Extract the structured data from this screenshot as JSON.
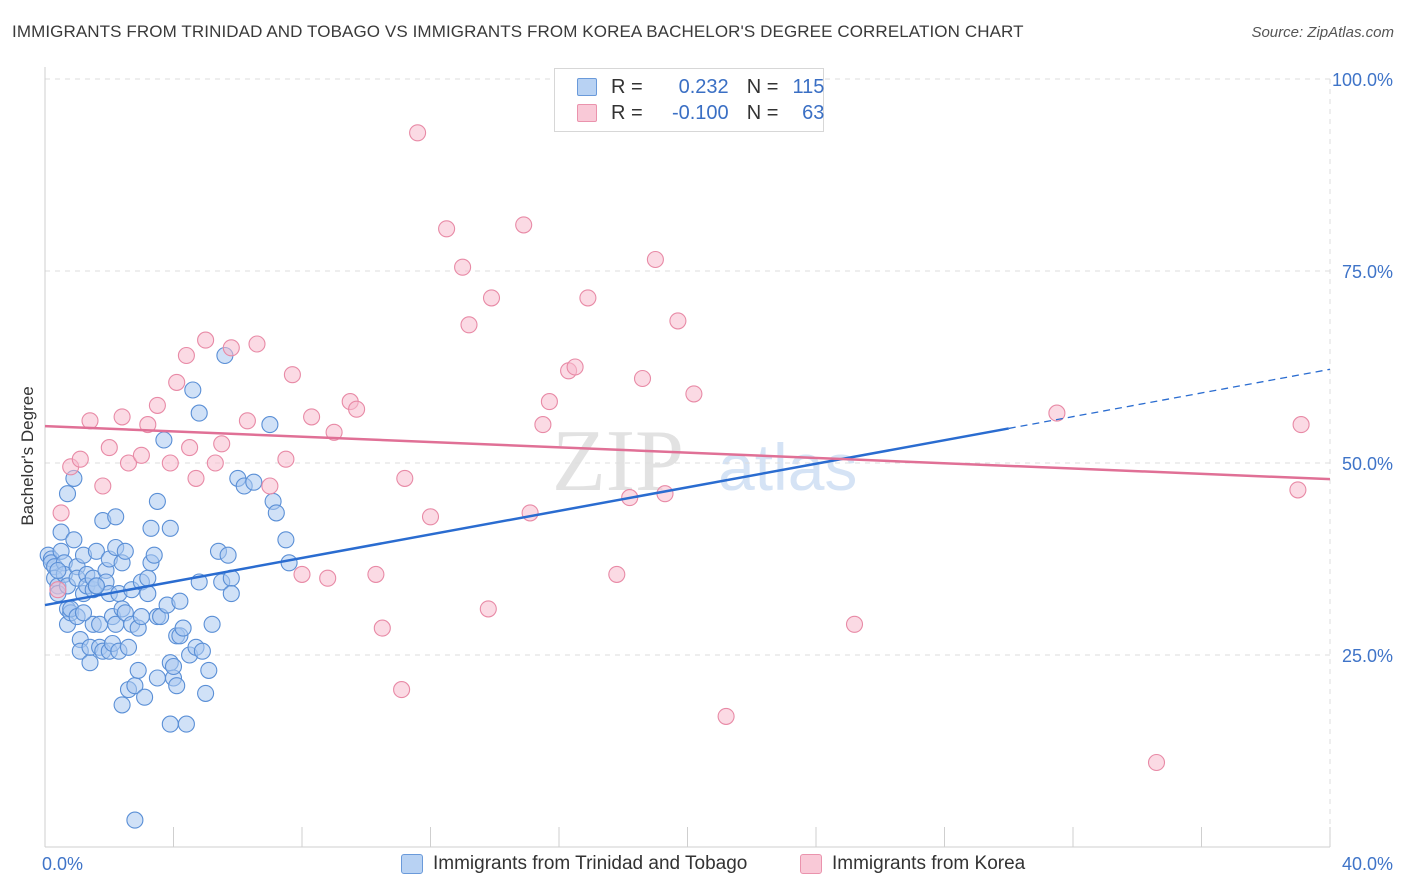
{
  "header": {
    "title": "IMMIGRANTS FROM TRINIDAD AND TOBAGO VS IMMIGRANTS FROM KOREA BACHELOR'S DEGREE CORRELATION CHART",
    "source": "Source: ZipAtlas.com"
  },
  "watermark": {
    "zip": "ZIP",
    "atlas": "atlas"
  },
  "legend_top": {
    "rows": [
      {
        "r_label": "R =",
        "r_value": "0.232",
        "n_label": "N =",
        "n_value": "115"
      },
      {
        "r_label": "R =",
        "r_value": "-0.100",
        "n_label": "N =",
        "n_value": "63"
      }
    ]
  },
  "colors": {
    "blue_fill": "#a9c8f0",
    "blue_stroke": "#5a8fd6",
    "blue_line": "#2a6cd0",
    "pink_fill": "#f7bccd",
    "pink_stroke": "#e88aa6",
    "pink_line": "#e07096",
    "axis_text": "#3f74c8",
    "grid": "#dddddd"
  },
  "chart_data": {
    "type": "scatter",
    "ylabel": "Bachelor's Degree",
    "xlabel": "",
    "xlim": [
      0,
      40
    ],
    "ylim": [
      0,
      100
    ],
    "x_tick_labels": [
      {
        "value": 0,
        "label": "0.0%"
      },
      {
        "value": 40,
        "label": "40.0%"
      }
    ],
    "y_tick_labels": [
      {
        "value": 25,
        "label": "25.0%"
      },
      {
        "value": 50,
        "label": "50.0%"
      },
      {
        "value": 75,
        "label": "75.0%"
      },
      {
        "value": 100,
        "label": "100.0%"
      }
    ],
    "grid": true,
    "legend_position": "bottom",
    "series": [
      {
        "name": "Immigrants from Trinidad and Tobago",
        "color": "#a9c8f0",
        "trend": {
          "x": [
            0,
            30
          ],
          "y": [
            31.5,
            54.5
          ],
          "dashed_extension": {
            "x": [
              30,
              40
            ],
            "y": [
              54.5,
              62.2
            ]
          }
        },
        "points": [
          [
            0.1,
            38
          ],
          [
            0.2,
            37.5
          ],
          [
            0.2,
            37
          ],
          [
            0.3,
            36.5
          ],
          [
            0.3,
            35
          ],
          [
            0.4,
            34
          ],
          [
            0.4,
            33
          ],
          [
            0.5,
            38.5
          ],
          [
            0.5,
            41
          ],
          [
            0.6,
            37
          ],
          [
            0.6,
            35.5
          ],
          [
            0.7,
            34
          ],
          [
            0.7,
            31
          ],
          [
            0.7,
            29
          ],
          [
            0.8,
            30.5
          ],
          [
            0.8,
            31
          ],
          [
            0.9,
            48
          ],
          [
            0.9,
            40
          ],
          [
            1.0,
            36.5
          ],
          [
            1.0,
            35
          ],
          [
            1.0,
            30
          ],
          [
            1.1,
            27
          ],
          [
            1.1,
            25.5
          ],
          [
            1.2,
            38
          ],
          [
            1.2,
            33
          ],
          [
            1.3,
            35.5
          ],
          [
            1.3,
            34
          ],
          [
            1.4,
            24
          ],
          [
            1.4,
            26
          ],
          [
            1.5,
            29
          ],
          [
            1.5,
            33.5
          ],
          [
            1.5,
            35
          ],
          [
            1.6,
            38.5
          ],
          [
            1.6,
            34
          ],
          [
            1.7,
            26
          ],
          [
            1.7,
            29
          ],
          [
            1.8,
            25.5
          ],
          [
            1.8,
            42.5
          ],
          [
            1.9,
            36
          ],
          [
            1.9,
            34.5
          ],
          [
            2.0,
            33
          ],
          [
            2.0,
            37.5
          ],
          [
            2.0,
            25.5
          ],
          [
            2.1,
            30
          ],
          [
            2.1,
            26.5
          ],
          [
            2.2,
            29
          ],
          [
            2.2,
            43
          ],
          [
            2.2,
            39
          ],
          [
            2.3,
            33
          ],
          [
            2.3,
            25.5
          ],
          [
            2.4,
            31
          ],
          [
            2.4,
            37
          ],
          [
            2.4,
            18.5
          ],
          [
            2.5,
            38.5
          ],
          [
            2.5,
            30.5
          ],
          [
            2.6,
            20.5
          ],
          [
            2.6,
            26
          ],
          [
            2.7,
            33.5
          ],
          [
            2.7,
            29
          ],
          [
            2.8,
            21
          ],
          [
            2.9,
            23
          ],
          [
            2.9,
            28.5
          ],
          [
            3.0,
            30
          ],
          [
            3.0,
            34.5
          ],
          [
            3.1,
            19.5
          ],
          [
            3.2,
            35
          ],
          [
            3.2,
            33
          ],
          [
            3.3,
            41.5
          ],
          [
            3.3,
            37
          ],
          [
            3.4,
            38
          ],
          [
            3.5,
            22
          ],
          [
            3.5,
            30
          ],
          [
            3.5,
            45
          ],
          [
            3.6,
            30
          ],
          [
            3.7,
            53
          ],
          [
            3.8,
            31.5
          ],
          [
            3.9,
            41.5
          ],
          [
            3.9,
            24
          ],
          [
            3.9,
            16
          ],
          [
            4.0,
            22
          ],
          [
            4.0,
            23.5
          ],
          [
            4.1,
            21
          ],
          [
            4.1,
            27.5
          ],
          [
            4.2,
            27.5
          ],
          [
            4.2,
            32
          ],
          [
            4.3,
            28.5
          ],
          [
            4.4,
            16
          ],
          [
            4.5,
            25
          ],
          [
            4.6,
            59.5
          ],
          [
            4.7,
            26
          ],
          [
            4.8,
            56.5
          ],
          [
            4.8,
            34.5
          ],
          [
            4.9,
            25.5
          ],
          [
            5.0,
            20
          ],
          [
            5.1,
            23
          ],
          [
            5.2,
            29
          ],
          [
            5.4,
            38.5
          ],
          [
            5.5,
            34.5
          ],
          [
            5.6,
            64
          ],
          [
            5.7,
            38
          ],
          [
            5.8,
            35
          ],
          [
            5.8,
            33
          ],
          [
            6.0,
            48
          ],
          [
            6.2,
            47
          ],
          [
            6.5,
            47.5
          ],
          [
            7.0,
            55
          ],
          [
            7.1,
            45
          ],
          [
            7.2,
            43.5
          ],
          [
            7.5,
            40
          ],
          [
            7.6,
            37
          ],
          [
            0.4,
            36
          ],
          [
            1.2,
            30.5
          ],
          [
            0.7,
            46
          ],
          [
            1.6,
            34
          ],
          [
            2.8,
            3.5
          ]
        ]
      },
      {
        "name": "Immigrants from Korea",
        "color": "#f7bccd",
        "trend": {
          "x": [
            0,
            40
          ],
          "y": [
            54.8,
            47.9
          ]
        },
        "points": [
          [
            0.4,
            33.5
          ],
          [
            0.5,
            43.5
          ],
          [
            0.8,
            49.5
          ],
          [
            1.1,
            50.5
          ],
          [
            1.4,
            55.5
          ],
          [
            1.8,
            47
          ],
          [
            2.0,
            52
          ],
          [
            2.4,
            56
          ],
          [
            2.6,
            50
          ],
          [
            3.0,
            51
          ],
          [
            3.2,
            55
          ],
          [
            3.5,
            57.5
          ],
          [
            3.9,
            50
          ],
          [
            4.1,
            60.5
          ],
          [
            4.4,
            64
          ],
          [
            4.5,
            52
          ],
          [
            4.7,
            48
          ],
          [
            5.0,
            66
          ],
          [
            5.3,
            50
          ],
          [
            5.5,
            52.5
          ],
          [
            5.8,
            65
          ],
          [
            6.3,
            55.5
          ],
          [
            6.6,
            65.5
          ],
          [
            7.0,
            47
          ],
          [
            7.5,
            50.5
          ],
          [
            7.7,
            61.5
          ],
          [
            8.0,
            35.5
          ],
          [
            8.3,
            56
          ],
          [
            8.8,
            35
          ],
          [
            9.0,
            54
          ],
          [
            9.5,
            58
          ],
          [
            9.7,
            57
          ],
          [
            10.3,
            35.5
          ],
          [
            10.5,
            28.5
          ],
          [
            11.1,
            20.5
          ],
          [
            11.2,
            48
          ],
          [
            11.6,
            93
          ],
          [
            12.0,
            43
          ],
          [
            12.5,
            80.5
          ],
          [
            13.0,
            75.5
          ],
          [
            13.2,
            68
          ],
          [
            13.8,
            31
          ],
          [
            13.9,
            71.5
          ],
          [
            14.9,
            81
          ],
          [
            15.1,
            43.5
          ],
          [
            15.5,
            55
          ],
          [
            15.7,
            58
          ],
          [
            16.3,
            62
          ],
          [
            16.5,
            62.5
          ],
          [
            16.9,
            71.5
          ],
          [
            17.8,
            35.5
          ],
          [
            18.2,
            45.5
          ],
          [
            18.6,
            61
          ],
          [
            19.0,
            76.5
          ],
          [
            19.3,
            46
          ],
          [
            19.7,
            68.5
          ],
          [
            20.2,
            59
          ],
          [
            21.2,
            17
          ],
          [
            25.2,
            29
          ],
          [
            31.5,
            56.5
          ],
          [
            34.6,
            11
          ],
          [
            39.0,
            46.5
          ],
          [
            39.1,
            55
          ]
        ]
      }
    ]
  },
  "bottom_legend": {
    "items": [
      {
        "label": "Immigrants from Trinidad and Tobago"
      },
      {
        "label": "Immigrants from Korea"
      }
    ]
  }
}
